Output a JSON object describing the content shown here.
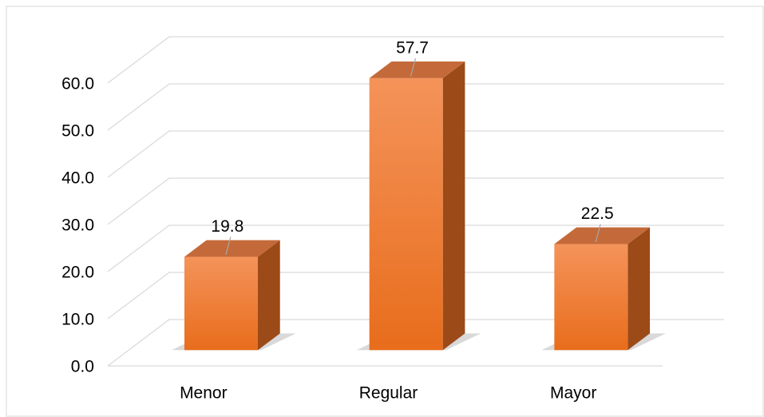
{
  "chart_data": {
    "type": "bar3d",
    "categories": [
      "Menor",
      "Regular",
      "Mayor"
    ],
    "values": [
      19.8,
      57.7,
      22.5
    ],
    "color": "#f07a28",
    "ylim": [
      0,
      60
    ],
    "yticks": [
      {
        "value": 0,
        "label": "0.0"
      },
      {
        "value": 10,
        "label": "10.0"
      },
      {
        "value": 20,
        "label": "20.0"
      },
      {
        "value": 30,
        "label": "30.0"
      },
      {
        "value": 40,
        "label": "40.0"
      },
      {
        "value": 50,
        "label": "50.0"
      },
      {
        "value": 60,
        "label": "60.0"
      }
    ],
    "grid": true
  }
}
